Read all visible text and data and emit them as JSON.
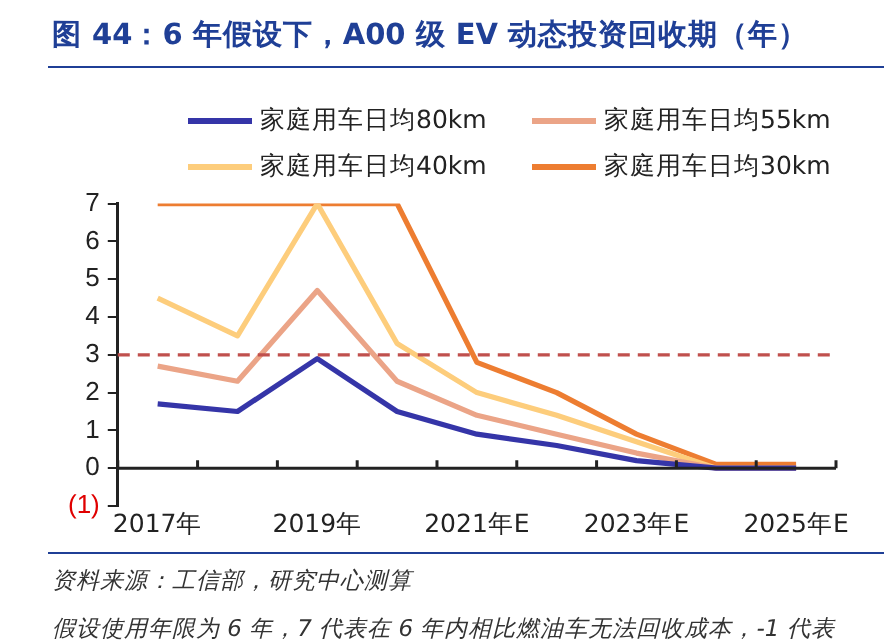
{
  "chart_data": {
    "type": "line",
    "title": "图 44：6 年假设下，A00 级 EV 动态投资回收期（年）",
    "categories": [
      "2017年",
      null,
      "2019年",
      null,
      "2021年E",
      null,
      "2023年E",
      null,
      "2025年E"
    ],
    "series": [
      {
        "name": "家庭用车日均80km",
        "color": "#3535a8",
        "values": [
          1.7,
          1.5,
          2.9,
          1.5,
          0.9,
          0.6,
          0.2,
          0,
          0
        ]
      },
      {
        "name": "家庭用车日均55km",
        "color": "#eba487",
        "values": [
          2.7,
          2.3,
          4.7,
          2.3,
          1.4,
          0.9,
          0.4,
          0,
          0
        ]
      },
      {
        "name": "家庭用车日均40km",
        "color": "#fdcd7c",
        "values": [
          4.5,
          3.5,
          7,
          3.3,
          2.0,
          1.4,
          0.7,
          0,
          0
        ]
      },
      {
        "name": "家庭用车日均30km",
        "color": "#ed7d31",
        "values": [
          7,
          7,
          7,
          7,
          2.8,
          2.0,
          0.9,
          0.1,
          0.1
        ]
      }
    ],
    "ylim": [
      -1,
      7
    ],
    "yticks": [
      {
        "value": -1,
        "label": "(1)"
      },
      0,
      1,
      2,
      3,
      4,
      5,
      6,
      7
    ],
    "ref_lines": [
      {
        "axis": "y",
        "value": 3,
        "color": "#c0504d",
        "line_style": "dashed"
      }
    ],
    "legend": "top",
    "grid": false,
    "marker": "none",
    "annotations": [
      "资料来源：工信部，研究中心测算",
      "假设使用年限为 6 年，7 代表在 6 年内相比燃油车无法回收成本，-1 代表"
    ]
  }
}
